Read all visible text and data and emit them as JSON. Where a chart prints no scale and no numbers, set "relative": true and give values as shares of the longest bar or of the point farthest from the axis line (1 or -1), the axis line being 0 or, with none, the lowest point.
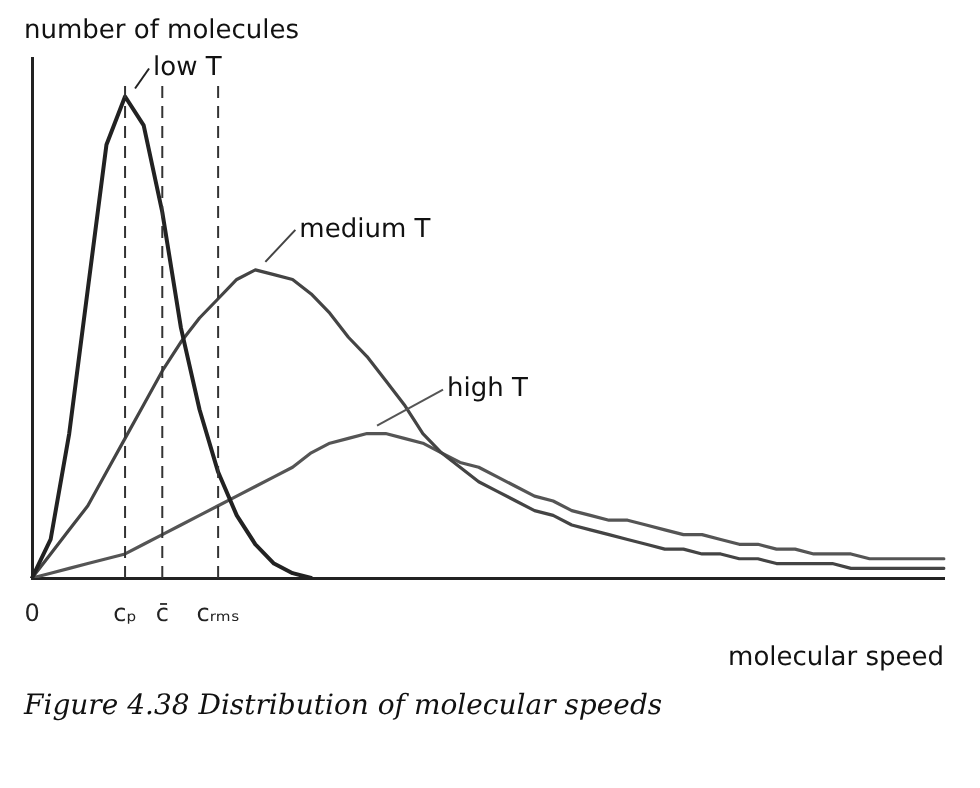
{
  "chart_data": {
    "type": "line",
    "relative": true,
    "xlabel": "molecular speed",
    "ylabel": "number of molecules",
    "categories": [
      "0",
      null,
      null,
      null,
      null,
      "cₚ",
      null,
      "c̄",
      null,
      null,
      "cᵣₘₛ",
      null,
      null,
      null,
      null,
      null,
      null,
      null,
      null,
      null,
      null,
      null,
      null,
      null,
      null,
      null,
      null,
      null,
      null,
      null,
      null,
      null,
      null,
      null,
      null,
      null,
      null,
      null,
      null,
      null,
      null,
      null,
      null,
      null,
      null,
      null,
      null,
      null,
      null,
      null
    ],
    "series": [
      {
        "name": "low T",
        "color": "#222222",
        "values": [
          0,
          0.08,
          0.3,
          0.6,
          0.9,
          1,
          0.94,
          0.76,
          0.52,
          0.35,
          0.22,
          0.13,
          0.07,
          0.03,
          0.01,
          0,
          null,
          null,
          null,
          null,
          null,
          null,
          null,
          null,
          null,
          null,
          null,
          null,
          null,
          null,
          null,
          null,
          null,
          null,
          null,
          null,
          null,
          null,
          null,
          null,
          null,
          null,
          null,
          null,
          null,
          null,
          null,
          null,
          null,
          null
        ]
      },
      {
        "name": "medium T",
        "color": "#444444",
        "values": [
          0,
          0.05,
          0.1,
          0.15,
          0.22,
          0.29,
          0.36,
          0.43,
          0.49,
          0.54,
          0.58,
          0.62,
          0.64,
          0.63,
          0.62,
          0.59,
          0.55,
          0.5,
          0.46,
          0.41,
          0.36,
          0.3,
          0.26,
          0.23,
          0.2,
          0.18,
          0.16,
          0.14,
          0.13,
          0.11,
          0.1,
          0.09,
          0.08,
          0.07,
          0.06,
          0.06,
          0.05,
          0.05,
          0.04,
          0.04,
          0.03,
          0.03,
          0.03,
          0.03,
          0.02,
          0.02,
          0.02,
          0.02,
          0.02,
          0.02
        ]
      },
      {
        "name": "high T",
        "color": "#555555",
        "values": [
          0,
          0.01,
          0.02,
          0.03,
          0.04,
          0.05,
          0.07,
          0.09,
          0.11,
          0.13,
          0.15,
          0.17,
          0.19,
          0.21,
          0.23,
          0.26,
          0.28,
          0.29,
          0.3,
          0.3,
          0.29,
          0.28,
          0.26,
          0.24,
          0.23,
          0.21,
          0.19,
          0.17,
          0.16,
          0.14,
          0.13,
          0.12,
          0.12,
          0.11,
          0.1,
          0.09,
          0.09,
          0.08,
          0.07,
          0.07,
          0.06,
          0.06,
          0.05,
          0.05,
          0.05,
          0.04,
          0.04,
          0.04,
          0.04,
          0.04
        ]
      }
    ],
    "ref_lines": [
      {
        "axis": "x",
        "value": "cₚ",
        "line_style": "dashed"
      },
      {
        "axis": "x",
        "value": "c̄",
        "line_style": "dashed"
      },
      {
        "axis": "x",
        "value": "cᵣₘₛ",
        "line_style": "dashed"
      }
    ],
    "legend": "top",
    "grid": false,
    "marker": "none",
    "line_style": "solid",
    "annotations": [
      "Figure 4.38 Distribution of molecular speeds"
    ]
  }
}
